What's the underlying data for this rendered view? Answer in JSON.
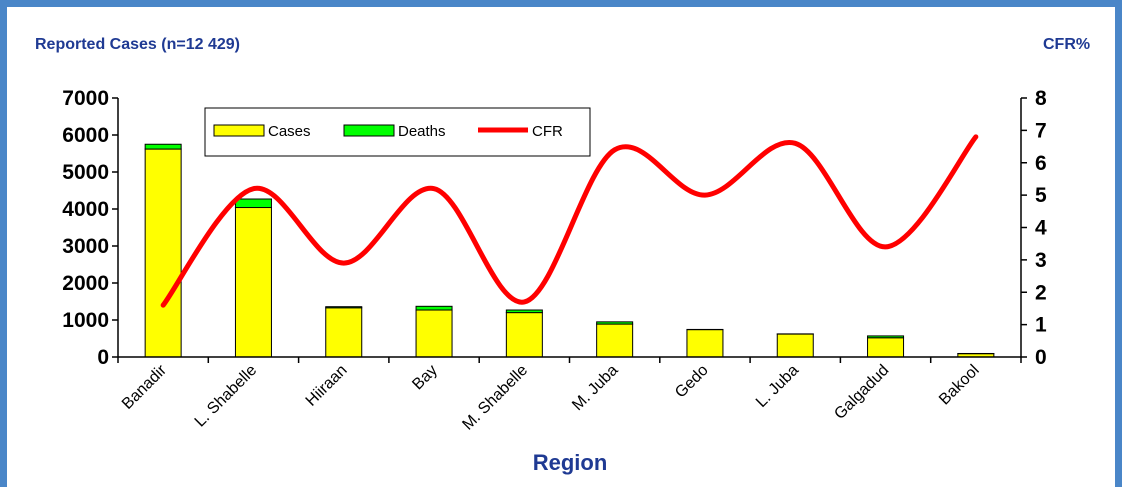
{
  "chart_data": {
    "type": "bar",
    "title": "Reported Cases (n=12 429)",
    "right_axis_title": "CFR%",
    "xlabel": "Region",
    "categories": [
      "Banadir",
      "L. Shabelle",
      "Hiiraan",
      "Bay",
      "M. Shabelle",
      "M. Juba",
      "Gedo",
      "L. Juba",
      "Galgadud",
      "Bakool"
    ],
    "series": [
      {
        "name": "Cases",
        "kind": "stacked-bar",
        "color": "#ffff00",
        "values": [
          5620,
          4040,
          1330,
          1270,
          1200,
          890,
          740,
          620,
          520,
          90
        ]
      },
      {
        "name": "Deaths",
        "kind": "stacked-bar",
        "color": "#00ff00",
        "values": [
          130,
          230,
          30,
          100,
          70,
          60,
          5,
          5,
          50,
          5
        ]
      },
      {
        "name": "CFR",
        "kind": "line",
        "axis": "right",
        "color": "#ff0000",
        "values": [
          1.6,
          5.2,
          2.9,
          5.2,
          1.7,
          6.4,
          5.0,
          6.6,
          3.4,
          6.8
        ]
      }
    ],
    "ylim": [
      0,
      7000
    ],
    "yticks": [
      0,
      1000,
      2000,
      3000,
      4000,
      5000,
      6000,
      7000
    ],
    "y2lim": [
      0,
      8
    ],
    "y2ticks": [
      0,
      1,
      2,
      3,
      4,
      5,
      6,
      7,
      8
    ],
    "grid": false,
    "legend_position": "top-left"
  }
}
